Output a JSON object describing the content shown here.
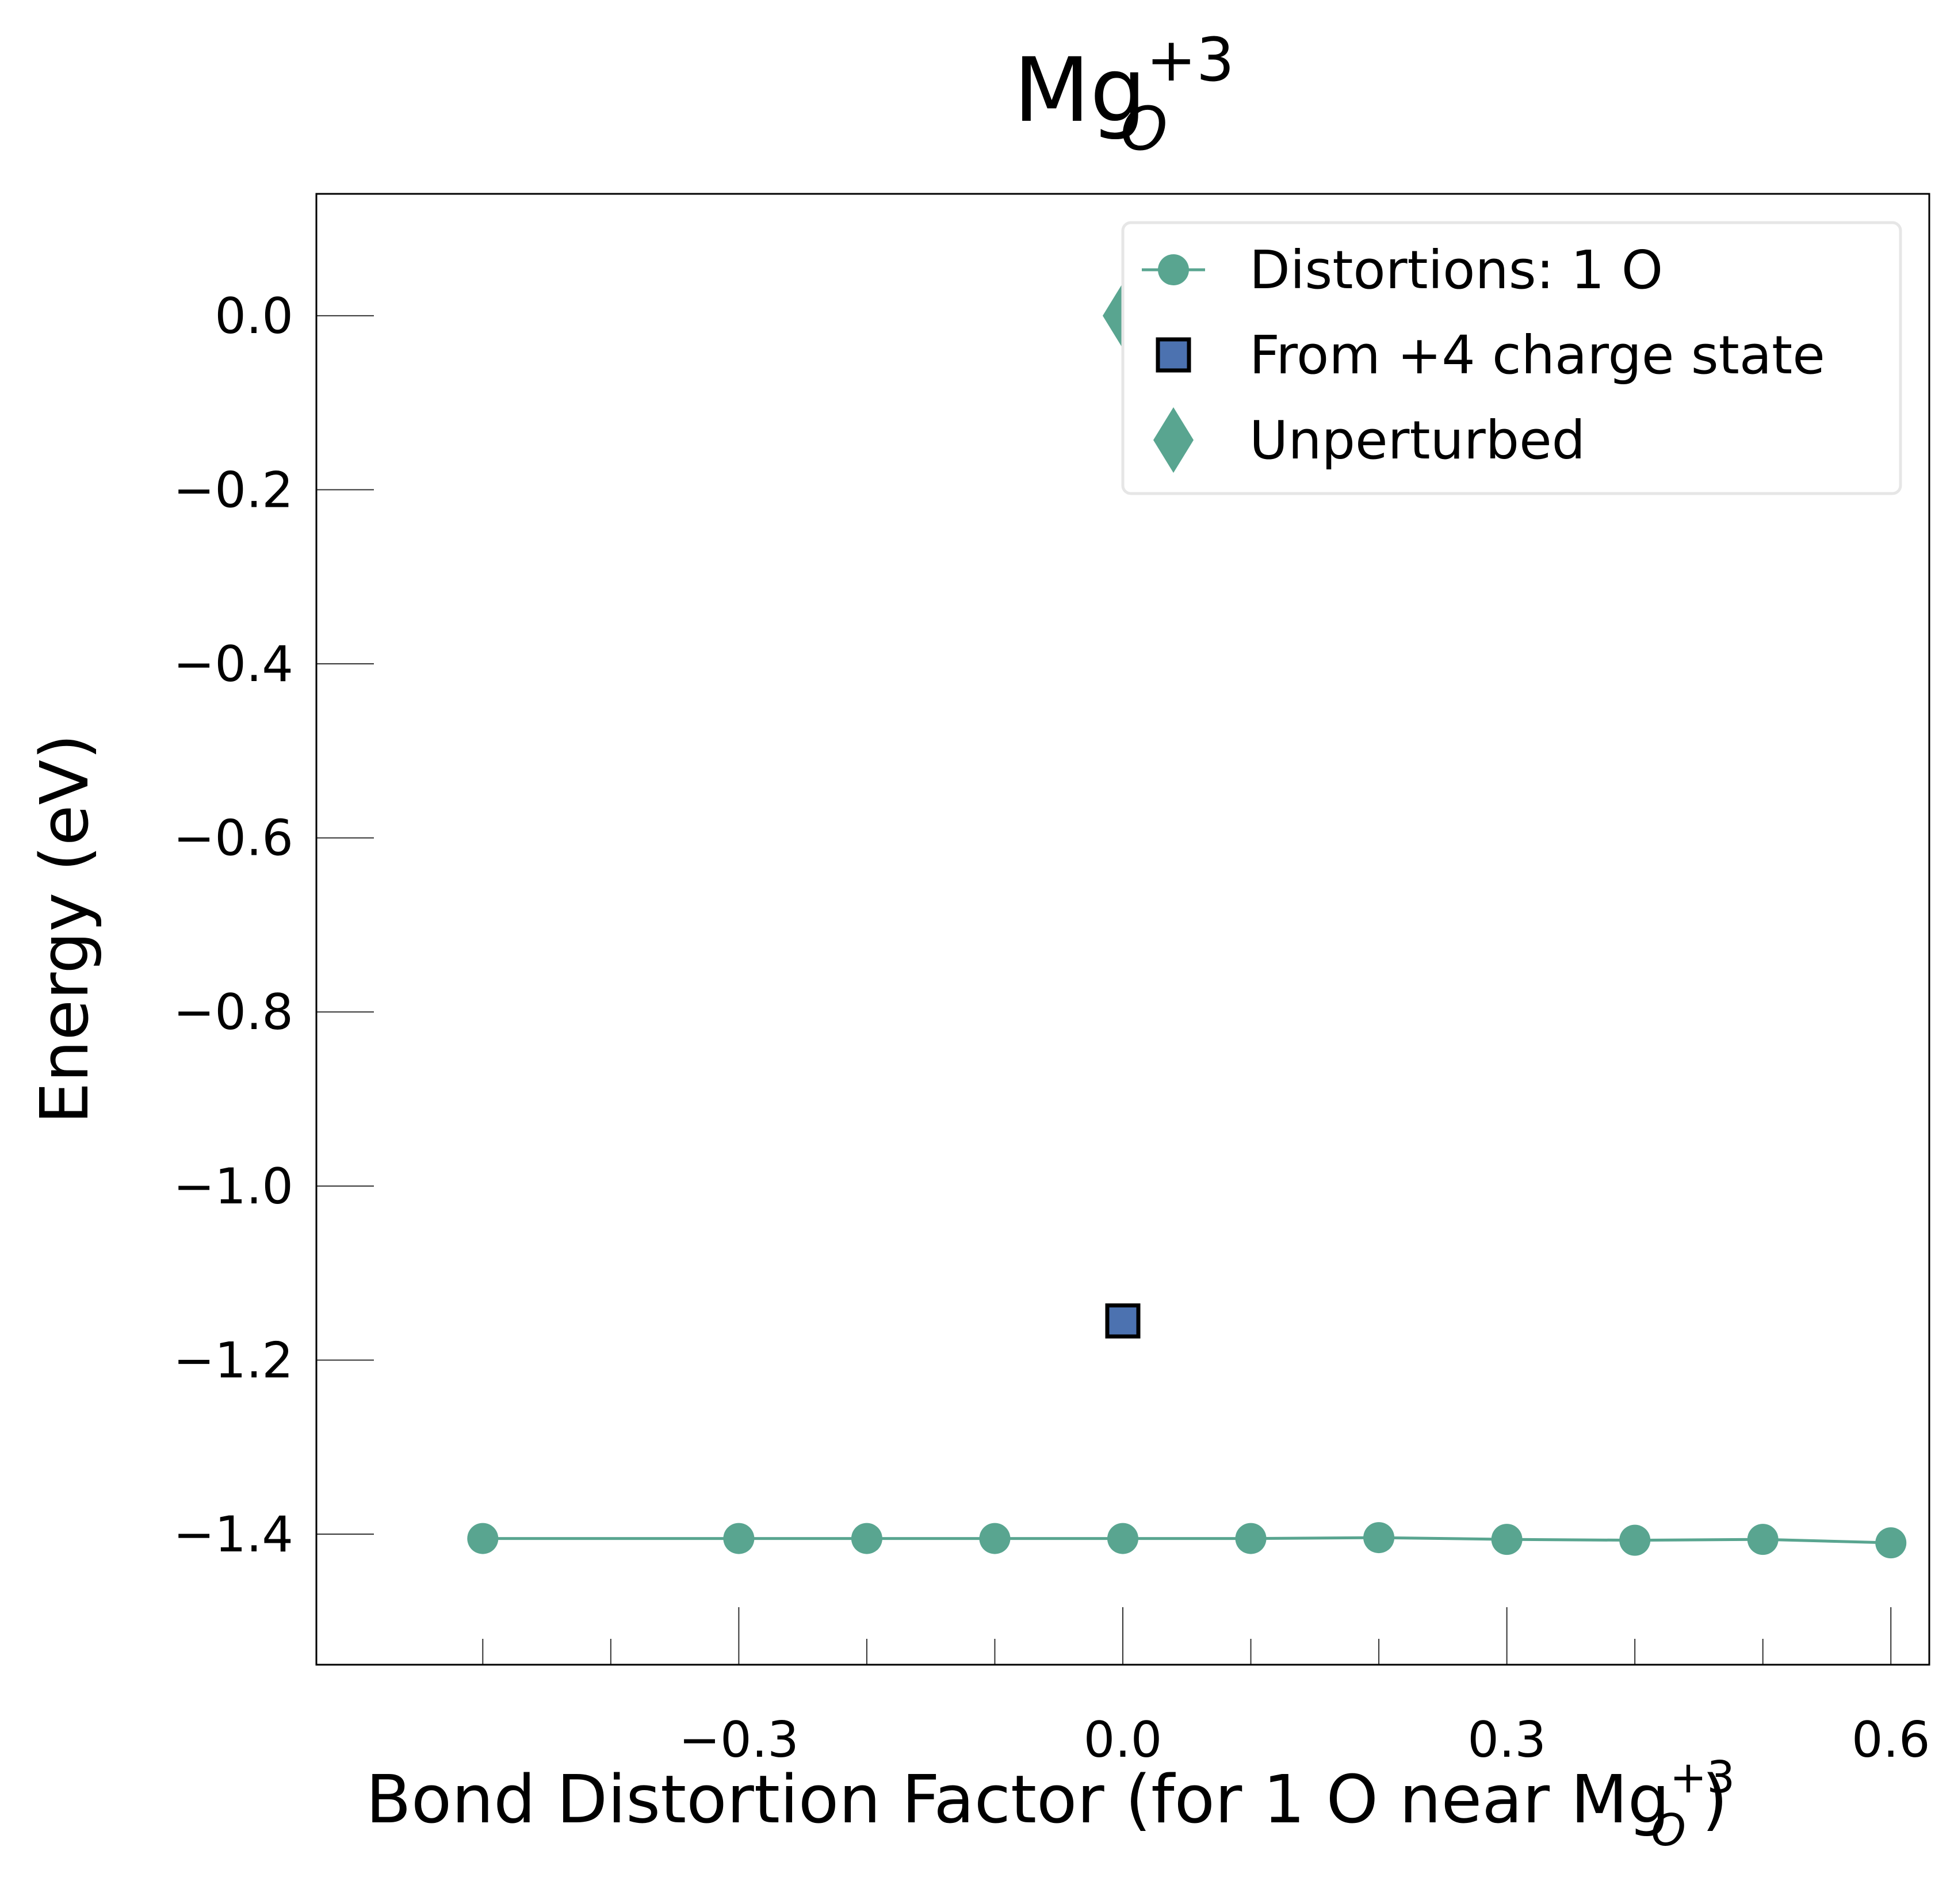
{
  "chart_data": {
    "type": "line",
    "title": {
      "base": "Mg",
      "sup": "+3",
      "sub": "O"
    },
    "xlabel": {
      "text": "Bond Distortion Factor (for 1 O near Mg",
      "sup": "+3",
      "sub": "O",
      "close": ")"
    },
    "ylabel": "Energy (eV)",
    "xlim": [
      -0.63,
      0.63
    ],
    "ylim": [
      -1.55,
      0.14
    ],
    "xticks": {
      "major": [
        -0.3,
        0.0,
        0.3,
        0.6
      ],
      "labels": [
        "−0.3",
        "0.0",
        "0.3",
        "0.6"
      ],
      "minor": [
        -0.5,
        -0.4,
        -0.2,
        -0.1,
        0.1,
        0.2,
        0.4,
        0.5
      ]
    },
    "yticks": {
      "values": [
        0.0,
        -0.2,
        -0.4,
        -0.6,
        -0.8,
        -1.0,
        -1.2,
        -1.4
      ],
      "labels": [
        "0.0",
        "−0.2",
        "−0.4",
        "−0.6",
        "−0.8",
        "−1.0",
        "−1.2",
        "−1.4"
      ]
    },
    "grid": false,
    "legend_position": "top-right",
    "series": [
      {
        "name": "Distortions: 1 O",
        "kind": "line-marker",
        "marker": "circle",
        "color": "#59a590",
        "x": [
          -0.5,
          -0.3,
          -0.2,
          -0.1,
          0.0,
          0.1,
          0.2,
          0.3,
          0.4,
          0.5,
          0.6
        ],
        "y": [
          -1.405,
          -1.405,
          -1.405,
          -1.405,
          -1.405,
          -1.405,
          -1.404,
          -1.406,
          -1.407,
          -1.406,
          -1.41
        ]
      },
      {
        "name": "From +4 charge state",
        "kind": "marker",
        "marker": "square",
        "color": "#4c72b0",
        "edge_color": "#000000",
        "x": [
          0.0
        ],
        "y": [
          -1.155
        ]
      },
      {
        "name": "Unperturbed",
        "kind": "marker",
        "marker": "diamond",
        "color": "#59a590",
        "x": [
          0.0
        ],
        "y": [
          0.0
        ]
      }
    ]
  }
}
